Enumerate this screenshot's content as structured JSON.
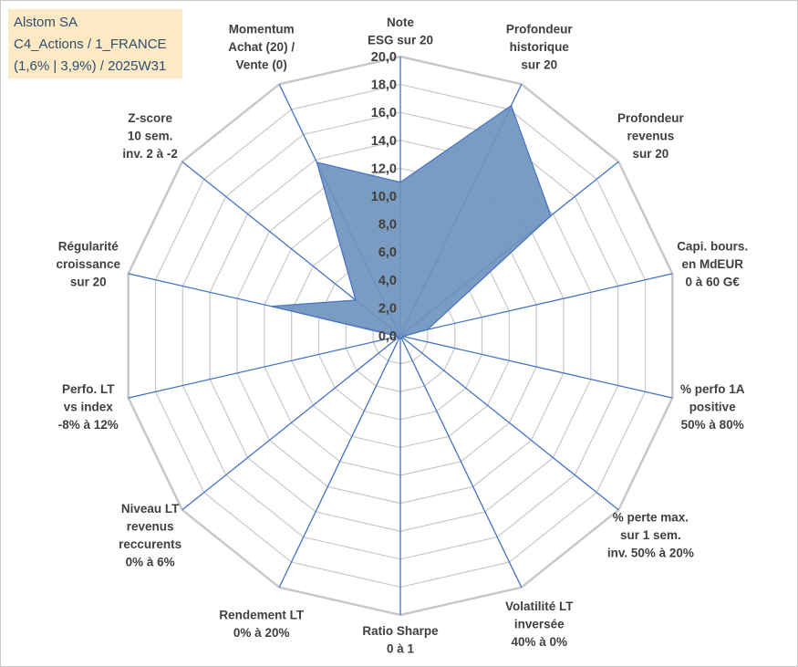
{
  "title_box": {
    "line1": "Alstom SA",
    "line2": "C4_Actions / 1_FRANCE",
    "line3": "(1,6% | 3,9%) / 2025W31"
  },
  "chart_data": {
    "type": "radar",
    "rmax": 20,
    "ticks": [
      "0,0",
      "2,0",
      "4,0",
      "6,0",
      "8,0",
      "10,0",
      "12,0",
      "14,0",
      "16,0",
      "18,0",
      "20,0"
    ],
    "grid": true,
    "colors": {
      "fill": "#6f93bd",
      "stroke": "#4472c4",
      "grid": "#c8c8c8",
      "spoke": "#4472c4"
    },
    "axes": [
      {
        "label": [
          "Note",
          "ESG sur 20"
        ],
        "value": 11.0
      },
      {
        "label": [
          "Profondeur",
          "historique",
          "sur 20"
        ],
        "value": 18.3
      },
      {
        "label": [
          "Profondeur",
          "revenus",
          "sur 20"
        ],
        "value": 13.8
      },
      {
        "label": [
          "Capi. bours.",
          "en MdEUR",
          "0 à 60 G€"
        ],
        "value": 2.0
      },
      {
        "label": [
          "% perfo 1A",
          "positive",
          "50% à 80%"
        ],
        "value": 0.2
      },
      {
        "label": [
          "% perte max.",
          "sur 1 sem.",
          "inv. 50% à 20%"
        ],
        "value": 0.2
      },
      {
        "label": [
          "Volatilité LT",
          "inversée",
          "40% à 0%"
        ],
        "value": 0.2
      },
      {
        "label": [
          "Ratio Sharpe",
          "0 à 1"
        ],
        "value": 0.2
      },
      {
        "label": [
          "Rendement LT",
          "0% à 20%"
        ],
        "value": 0.2
      },
      {
        "label": [
          "Niveau LT",
          "revenus",
          "reccurents",
          "0% à 6%"
        ],
        "value": 0.2
      },
      {
        "label": [
          "Perfo. LT",
          "vs index",
          "-8% à 12%"
        ],
        "value": 0.2
      },
      {
        "label": [
          "Régularité",
          "croissance",
          "sur 20"
        ],
        "value": 9.5
      },
      {
        "label": [
          "Z-score",
          "10 sem.",
          "inv. 2 à -2"
        ],
        "value": 4.1
      },
      {
        "label": [
          "Momentum",
          "Achat (20) /",
          "Vente (0)"
        ],
        "value": 13.8
      }
    ]
  }
}
